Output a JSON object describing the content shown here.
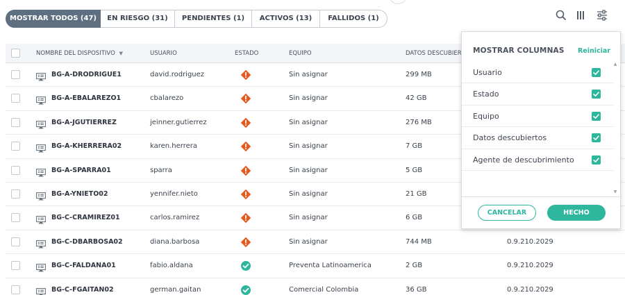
{
  "tabs": [
    {
      "label": "MOSTRAR TODOS (47)",
      "active": true
    },
    {
      "label": "EN RIESGO (31)",
      "active": false
    },
    {
      "label": "PENDIENTES (1)",
      "active": false
    },
    {
      "label": "ACTIVOS (13)",
      "active": false
    },
    {
      "label": "FALLIDOS (1)",
      "active": false
    }
  ],
  "toolbar": {
    "icons": [
      "search-icon",
      "columns-icon",
      "filter-sliders-icon"
    ]
  },
  "table": {
    "headers": {
      "device": "NOMBRE DEL DISPOSITIVO",
      "user": "USUARIO",
      "status": "ESTADO",
      "team": "EQUIPO",
      "data": "DATOS DESCUBIERTOS"
    },
    "rows": [
      {
        "device": "BG-A-DRODRIGUE1",
        "user": "david.rodriguez",
        "status": "risk",
        "team": "Sin asignar",
        "data": "299 MB",
        "version": ""
      },
      {
        "device": "BG-A-EBALAREZO1",
        "user": "cbalarezo",
        "status": "risk",
        "team": "Sin asignar",
        "data": "42 GB",
        "version": ""
      },
      {
        "device": "BG-A-JGUTIERREZ",
        "user": "jeinner.gutierrez",
        "status": "risk",
        "team": "Sin asignar",
        "data": "276 MB",
        "version": ""
      },
      {
        "device": "BG-A-KHERRERA02",
        "user": "karen.herrera",
        "status": "risk",
        "team": "Sin asignar",
        "data": "7 GB",
        "version": ""
      },
      {
        "device": "BG-A-SPARRA01",
        "user": "sparra",
        "status": "risk",
        "team": "Sin asignar",
        "data": "5 GB",
        "version": ""
      },
      {
        "device": "BG-A-YNIETO02",
        "user": "yennifer.nieto",
        "status": "risk",
        "team": "Sin asignar",
        "data": "21 GB",
        "version": ""
      },
      {
        "device": "BG-C-CRAMIREZ01",
        "user": "carlos.ramirez",
        "status": "risk",
        "team": "Sin asignar",
        "data": "6 GB",
        "version": ""
      },
      {
        "device": "BG-C-DBARBOSA02",
        "user": "diana.barbosa",
        "status": "risk",
        "team": "Sin asignar",
        "data": "744 MB",
        "version": "0.9.210.2029"
      },
      {
        "device": "BG-C-FALDANA01",
        "user": "fabio.aldana",
        "status": "ok",
        "team": "Preventa Latinoamerica",
        "data": "2 GB",
        "version": "0.9.210.2029"
      },
      {
        "device": "BG-C-FGAITAN02",
        "user": "german.gaitan",
        "status": "ok",
        "team": "Comercial Colombia",
        "data": "36 GB",
        "version": "0.9.210.2029"
      }
    ]
  },
  "column_panel": {
    "title": "MOSTRAR COLUMNAS",
    "reset_label": "Reiniciar",
    "columns": [
      {
        "label": "Usuario",
        "checked": true
      },
      {
        "label": "Estado",
        "checked": true
      },
      {
        "label": "Equipo",
        "checked": true
      },
      {
        "label": "Datos descubiertos",
        "checked": true
      },
      {
        "label": "Agente de descubrimiento",
        "checked": true
      }
    ],
    "cancel_label": "CANCELAR",
    "done_label": "HECHO"
  },
  "colors": {
    "accent": "#2fb79e",
    "risk": "#e8571c",
    "ok": "#2fb79e",
    "active_tab": "#5f6f82"
  }
}
